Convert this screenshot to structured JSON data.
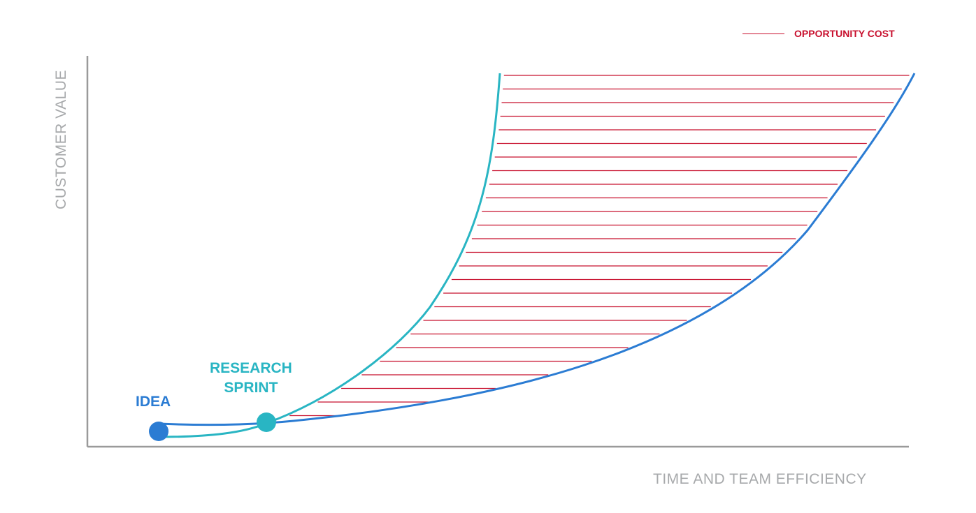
{
  "legend": {
    "label": "OPPORTUNITY COST",
    "color": "#c8102e"
  },
  "axes": {
    "x_label": "TIME AND  TEAM EFFICIENCY",
    "y_label": "CUSTOMER VALUE",
    "color": "#a7a9ab"
  },
  "points": {
    "idea": {
      "label": "IDEA",
      "color": "#2b7cd3"
    },
    "sprint": {
      "label_line1": "RESEARCH",
      "label_line2": "SPRINT",
      "color": "#29b5c3"
    }
  },
  "curves": {
    "baseline": {
      "color": "#2b7cd3"
    },
    "research": {
      "color": "#29b5c3"
    }
  }
}
